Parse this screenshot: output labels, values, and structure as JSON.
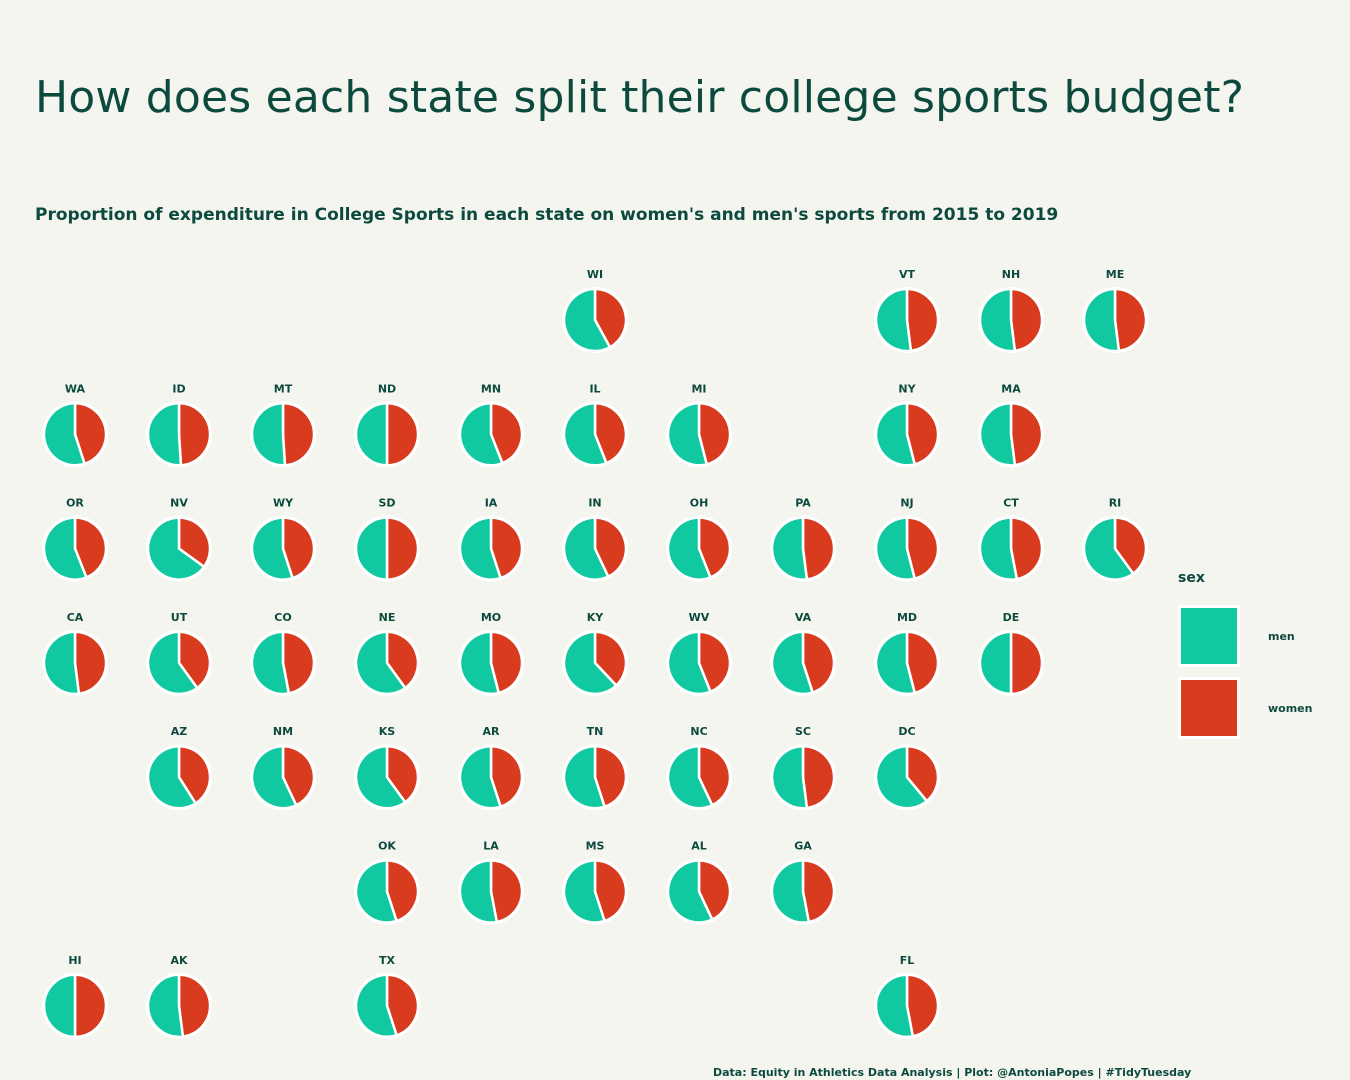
{
  "title": "How does each state split their college sports budget?",
  "subtitle": "Proportion of expenditure in College Sports in each state on women's and men's sports from 2015 to 2019",
  "caption": "Data: Equity in Athletics Data Analysis | Plot: @AntoniaPopes | #TidyTuesday",
  "legend": {
    "title": "sex",
    "items": [
      {
        "label": "men",
        "color": "#11c9a0"
      },
      {
        "label": "women",
        "color": "#d93b1f"
      }
    ]
  },
  "chart_data": {
    "type": "pie",
    "layout": "US state tile grid map",
    "series": [
      "men",
      "women"
    ],
    "colors": {
      "men": "#11c9a0",
      "women": "#d93b1f"
    },
    "states": [
      {
        "state": "WI",
        "row": 0,
        "col": 5,
        "men": 0.58,
        "women": 0.42
      },
      {
        "state": "VT",
        "row": 0,
        "col": 8,
        "men": 0.52,
        "women": 0.48
      },
      {
        "state": "NH",
        "row": 0,
        "col": 9,
        "men": 0.52,
        "women": 0.48
      },
      {
        "state": "ME",
        "row": 0,
        "col": 10,
        "men": 0.52,
        "women": 0.48
      },
      {
        "state": "WA",
        "row": 1,
        "col": 0,
        "men": 0.55,
        "women": 0.45
      },
      {
        "state": "ID",
        "row": 1,
        "col": 1,
        "men": 0.51,
        "women": 0.49
      },
      {
        "state": "MT",
        "row": 1,
        "col": 2,
        "men": 0.51,
        "women": 0.49
      },
      {
        "state": "ND",
        "row": 1,
        "col": 3,
        "men": 0.5,
        "women": 0.5
      },
      {
        "state": "MN",
        "row": 1,
        "col": 4,
        "men": 0.56,
        "women": 0.44
      },
      {
        "state": "IL",
        "row": 1,
        "col": 5,
        "men": 0.56,
        "women": 0.44
      },
      {
        "state": "MI",
        "row": 1,
        "col": 6,
        "men": 0.54,
        "women": 0.46
      },
      {
        "state": "NY",
        "row": 1,
        "col": 8,
        "men": 0.54,
        "women": 0.46
      },
      {
        "state": "MA",
        "row": 1,
        "col": 9,
        "men": 0.52,
        "women": 0.48
      },
      {
        "state": "OR",
        "row": 2,
        "col": 0,
        "men": 0.56,
        "women": 0.44
      },
      {
        "state": "NV",
        "row": 2,
        "col": 1,
        "men": 0.65,
        "women": 0.35
      },
      {
        "state": "WY",
        "row": 2,
        "col": 2,
        "men": 0.55,
        "women": 0.45
      },
      {
        "state": "SD",
        "row": 2,
        "col": 3,
        "men": 0.5,
        "women": 0.5
      },
      {
        "state": "IA",
        "row": 2,
        "col": 4,
        "men": 0.55,
        "women": 0.45
      },
      {
        "state": "IN",
        "row": 2,
        "col": 5,
        "men": 0.57,
        "women": 0.43
      },
      {
        "state": "OH",
        "row": 2,
        "col": 6,
        "men": 0.56,
        "women": 0.44
      },
      {
        "state": "PA",
        "row": 2,
        "col": 7,
        "men": 0.52,
        "women": 0.48
      },
      {
        "state": "NJ",
        "row": 2,
        "col": 8,
        "men": 0.54,
        "women": 0.46
      },
      {
        "state": "CT",
        "row": 2,
        "col": 9,
        "men": 0.53,
        "women": 0.47
      },
      {
        "state": "RI",
        "row": 2,
        "col": 10,
        "men": 0.6,
        "women": 0.4
      },
      {
        "state": "CA",
        "row": 3,
        "col": 0,
        "men": 0.52,
        "women": 0.48
      },
      {
        "state": "UT",
        "row": 3,
        "col": 1,
        "men": 0.6,
        "women": 0.4
      },
      {
        "state": "CO",
        "row": 3,
        "col": 2,
        "men": 0.53,
        "women": 0.47
      },
      {
        "state": "NE",
        "row": 3,
        "col": 3,
        "men": 0.6,
        "women": 0.4
      },
      {
        "state": "MO",
        "row": 3,
        "col": 4,
        "men": 0.54,
        "women": 0.46
      },
      {
        "state": "KY",
        "row": 3,
        "col": 5,
        "men": 0.62,
        "women": 0.38
      },
      {
        "state": "WV",
        "row": 3,
        "col": 6,
        "men": 0.56,
        "women": 0.44
      },
      {
        "state": "VA",
        "row": 3,
        "col": 7,
        "men": 0.55,
        "women": 0.45
      },
      {
        "state": "MD",
        "row": 3,
        "col": 8,
        "men": 0.54,
        "women": 0.46
      },
      {
        "state": "DE",
        "row": 3,
        "col": 9,
        "men": 0.5,
        "women": 0.5
      },
      {
        "state": "AZ",
        "row": 4,
        "col": 1,
        "men": 0.59,
        "women": 0.41
      },
      {
        "state": "NM",
        "row": 4,
        "col": 2,
        "men": 0.57,
        "women": 0.43
      },
      {
        "state": "KS",
        "row": 4,
        "col": 3,
        "men": 0.6,
        "women": 0.4
      },
      {
        "state": "AR",
        "row": 4,
        "col": 4,
        "men": 0.55,
        "women": 0.45
      },
      {
        "state": "TN",
        "row": 4,
        "col": 5,
        "men": 0.55,
        "women": 0.45
      },
      {
        "state": "NC",
        "row": 4,
        "col": 6,
        "men": 0.57,
        "women": 0.43
      },
      {
        "state": "SC",
        "row": 4,
        "col": 7,
        "men": 0.52,
        "women": 0.48
      },
      {
        "state": "DC",
        "row": 4,
        "col": 8,
        "men": 0.61,
        "women": 0.39
      },
      {
        "state": "OK",
        "row": 5,
        "col": 3,
        "men": 0.55,
        "women": 0.45
      },
      {
        "state": "LA",
        "row": 5,
        "col": 4,
        "men": 0.53,
        "women": 0.47
      },
      {
        "state": "MS",
        "row": 5,
        "col": 5,
        "men": 0.55,
        "women": 0.45
      },
      {
        "state": "AL",
        "row": 5,
        "col": 6,
        "men": 0.57,
        "women": 0.43
      },
      {
        "state": "GA",
        "row": 5,
        "col": 7,
        "men": 0.53,
        "women": 0.47
      },
      {
        "state": "HI",
        "row": 6,
        "col": 0,
        "men": 0.5,
        "women": 0.5
      },
      {
        "state": "AK",
        "row": 6,
        "col": 1,
        "men": 0.52,
        "women": 0.48
      },
      {
        "state": "TX",
        "row": 6,
        "col": 3,
        "men": 0.55,
        "women": 0.45
      },
      {
        "state": "FL",
        "row": 6,
        "col": 8,
        "men": 0.53,
        "women": 0.47
      }
    ]
  }
}
